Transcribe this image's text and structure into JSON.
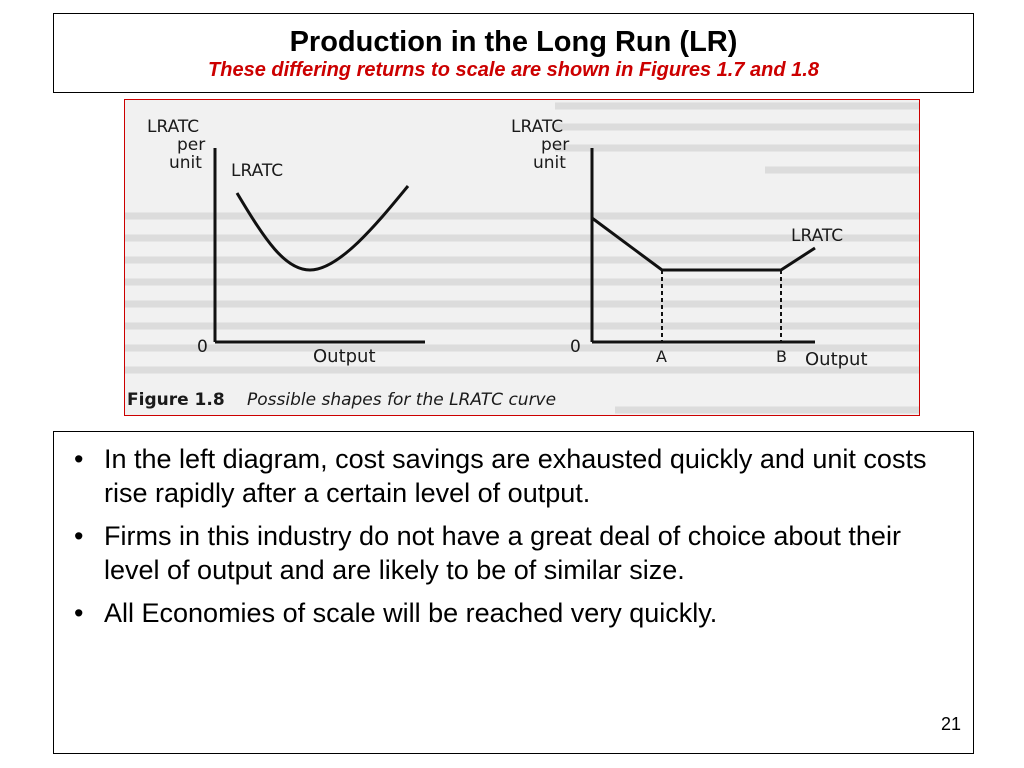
{
  "slide": {
    "title": "Production in the Long Run (LR)",
    "subtitle": "These differing returns to scale are shown in Figures 1.7 and 1.8",
    "page_number": "21"
  },
  "figure": {
    "caption_label": "Figure 1.8",
    "caption_text": "Possible shapes for the LRATC curve",
    "left": {
      "y_label_1": "LRATC",
      "y_label_2": "per",
      "y_label_3": "unit",
      "curve_label": "LRATC",
      "origin": "0",
      "x_label": "Output"
    },
    "right": {
      "y_label_1": "LRATC",
      "y_label_2": "per",
      "y_label_3": "unit",
      "curve_label": "LRATC",
      "origin": "0",
      "tick_a": "A",
      "tick_b": "B",
      "x_label": "Output"
    }
  },
  "bullets": [
    "In the left diagram, cost savings are exhausted quickly and unit costs rise rapidly after a certain level of output.",
    "Firms in this industry do not have a great deal of choice about their level of output and are likely to be of similar size.",
    "All Economies of scale will be reached very quickly."
  ],
  "bullet_symbol": "•"
}
